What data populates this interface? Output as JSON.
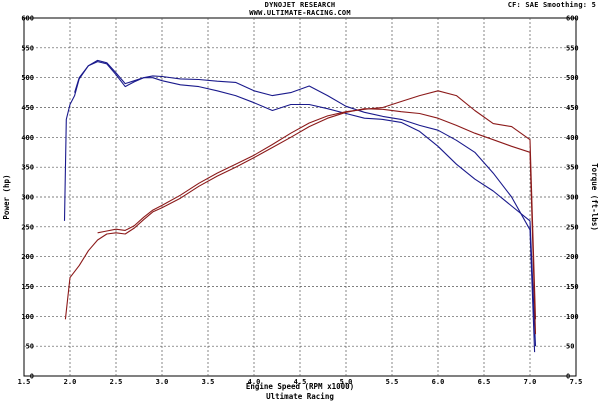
{
  "header": {
    "title": "DYNOJET RESEARCH",
    "subtitle": "WWW.ULTIMATE-RACING.COM",
    "settings": "CF: SAE  Smoothing: 5"
  },
  "chart_data": {
    "type": "line",
    "title": "DYNOJET RESEARCH",
    "xlabel": "Engine Speed (RPM x1000)",
    "ylabel_left": "Power (hp)",
    "ylabel_right": "Torque (ft-lbs)",
    "footer": "Ultimate Racing",
    "xlim": [
      1.5,
      7.5
    ],
    "ylim": [
      0,
      600
    ],
    "x_ticks": [
      "1.5",
      "2.0",
      "2.5",
      "3.0",
      "3.5",
      "4.0",
      "4.5",
      "5.0",
      "5.5",
      "6.0",
      "6.5",
      "7.0",
      "7.5"
    ],
    "y_ticks": [
      "0",
      "50",
      "100",
      "150",
      "200",
      "250",
      "300",
      "350",
      "400",
      "450",
      "500",
      "550",
      "600"
    ],
    "grid": true,
    "colors": {
      "blue": "#1a1a8c",
      "red": "#8c1a1a"
    },
    "series": [
      {
        "color": "blue",
        "x": [
          1.94,
          1.96,
          2.0,
          2.05,
          2.1,
          2.2,
          2.3,
          2.4,
          2.5,
          2.6,
          2.7,
          2.8,
          2.9,
          3.0,
          3.2,
          3.4,
          3.6,
          3.8,
          4.0,
          4.2,
          4.4,
          4.6,
          4.8,
          5.0,
          5.2,
          5.4,
          5.6,
          5.8,
          6.0,
          6.2,
          6.4,
          6.6,
          6.8,
          7.0,
          7.05
        ],
        "values": [
          260,
          430,
          455,
          470,
          498,
          520,
          529,
          525,
          508,
          490,
          495,
          500,
          503,
          502,
          498,
          497,
          494,
          492,
          478,
          470,
          475,
          486,
          470,
          452,
          442,
          435,
          430,
          420,
          412,
          395,
          375,
          340,
          300,
          245,
          40
        ]
      },
      {
        "color": "blue",
        "x": [
          2.05,
          2.1,
          2.2,
          2.3,
          2.4,
          2.5,
          2.6,
          2.7,
          2.8,
          2.9,
          3.0,
          3.2,
          3.4,
          3.6,
          3.8,
          4.0,
          4.2,
          4.4,
          4.6,
          4.8,
          5.0,
          5.2,
          5.4,
          5.6,
          5.8,
          6.0,
          6.2,
          6.4,
          6.6,
          6.8,
          7.0,
          7.06
        ],
        "values": [
          475,
          500,
          520,
          527,
          523,
          505,
          485,
          493,
          500,
          500,
          495,
          488,
          485,
          478,
          470,
          458,
          445,
          455,
          455,
          448,
          440,
          432,
          430,
          425,
          410,
          385,
          355,
          330,
          310,
          285,
          260,
          50
        ]
      },
      {
        "color": "red",
        "x": [
          1.95,
          2.0,
          2.1,
          2.2,
          2.3,
          2.4,
          2.5,
          2.6,
          2.7,
          2.8,
          2.9,
          3.0,
          3.2,
          3.4,
          3.6,
          3.8,
          4.0,
          4.2,
          4.4,
          4.6,
          4.8,
          5.0,
          5.2,
          5.4,
          5.6,
          5.8,
          6.0,
          6.2,
          6.4,
          6.6,
          6.8,
          7.0,
          7.06
        ],
        "values": [
          95,
          165,
          185,
          210,
          228,
          238,
          240,
          238,
          248,
          262,
          275,
          282,
          298,
          318,
          335,
          350,
          366,
          383,
          400,
          418,
          432,
          442,
          448,
          447,
          443,
          440,
          432,
          420,
          407,
          396,
          385,
          375,
          70
        ]
      },
      {
        "color": "red",
        "x": [
          2.3,
          2.4,
          2.5,
          2.6,
          2.7,
          2.8,
          2.9,
          3.0,
          3.2,
          3.4,
          3.6,
          3.8,
          4.0,
          4.2,
          4.4,
          4.6,
          4.8,
          5.0,
          5.2,
          5.4,
          5.6,
          5.8,
          6.0,
          6.2,
          6.4,
          6.6,
          6.8,
          7.0,
          7.06
        ],
        "values": [
          240,
          243,
          246,
          244,
          252,
          266,
          278,
          286,
          303,
          323,
          340,
          355,
          370,
          388,
          407,
          424,
          436,
          443,
          447,
          450,
          460,
          470,
          478,
          470,
          445,
          423,
          418,
          396,
          95
        ]
      }
    ]
  }
}
